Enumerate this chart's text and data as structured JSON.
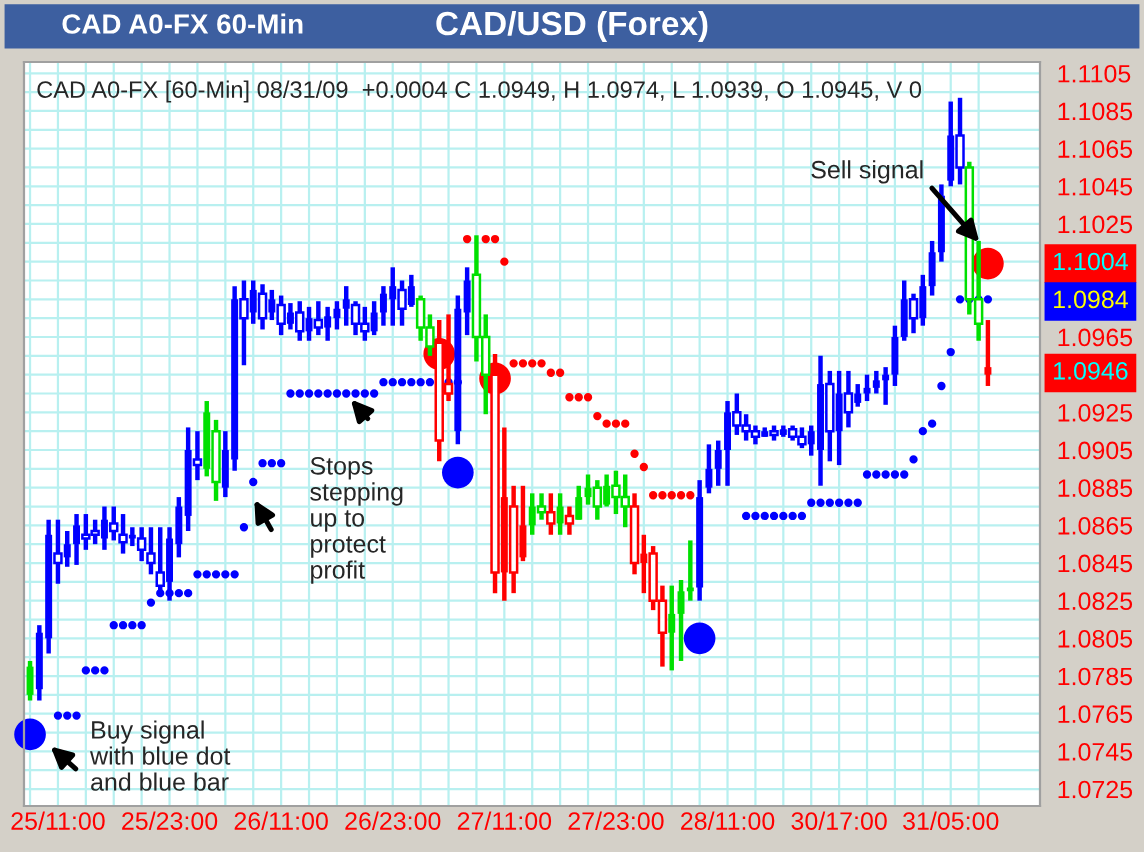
{
  "chart_data": {
    "type": "candlestick",
    "title": "CAD/USD (Forex)",
    "subtitle": "CAD A0-FX [60-Min] 08/31/09  +0.0004 C 1.0949, H 1.0974, L 1.0939, O 1.0945, V 0",
    "annotations": [
      "CAD A0-FX 60-Min",
      "Buy signal\nwith blue dot\nand blue bar",
      "Stops\nstepping\nup to\nprotect\nprofit",
      "Sell signal",
      "1.1004",
      "1.0984",
      "1.0946"
    ],
    "categories": [
      null,
      null,
      null,
      "25/11:00",
      null,
      null,
      null,
      null,
      null,
      null,
      null,
      null,
      null,
      null,
      null,
      "25/23:00",
      null,
      null,
      null,
      null,
      null,
      null,
      null,
      null,
      null,
      null,
      null,
      "26/11:00",
      null,
      null,
      null,
      null,
      null,
      null,
      null,
      null,
      null,
      null,
      null,
      "26/23:00",
      null,
      null,
      null,
      null,
      null,
      null,
      null,
      null,
      null,
      null,
      null,
      "27/11:00",
      null,
      null,
      null,
      null,
      null,
      null,
      null,
      null,
      null,
      null,
      null,
      "27/23:00",
      null,
      null,
      null,
      null,
      null,
      null,
      null,
      null,
      null,
      null,
      null,
      "28/11:00",
      null,
      null,
      null,
      null,
      null,
      null,
      null,
      null,
      null,
      null,
      null,
      "30/17:00",
      null,
      null,
      null,
      null,
      null,
      null,
      null,
      null,
      null,
      null,
      null,
      "31/05:00",
      null,
      null,
      null,
      null
    ],
    "ohlc": [
      [
        1.0775,
        1.0793,
        1.0772,
        1.079
      ],
      [
        1.0778,
        1.0812,
        1.0772,
        1.0808
      ],
      [
        1.0805,
        1.0868,
        1.0797,
        1.086
      ],
      [
        1.085,
        1.0868,
        1.0834,
        1.0845
      ],
      [
        1.0848,
        1.0862,
        1.0843,
        1.0855
      ],
      [
        1.0855,
        1.0871,
        1.0844,
        1.0865
      ],
      [
        1.086,
        1.0871,
        1.0852,
        1.0858
      ],
      [
        1.0862,
        1.0868,
        1.0855,
        1.086
      ],
      [
        1.0858,
        1.0875,
        1.0852,
        1.0868
      ],
      [
        1.0866,
        1.0875,
        1.0857,
        1.0862
      ],
      [
        1.086,
        1.0871,
        1.085,
        1.0856
      ],
      [
        1.0858,
        1.0864,
        1.0854,
        1.086
      ],
      [
        1.0858,
        1.0864,
        1.0846,
        1.0852
      ],
      [
        1.085,
        1.0864,
        1.0839,
        1.0845
      ],
      [
        1.084,
        1.0864,
        1.0828,
        1.0833
      ],
      [
        1.0835,
        1.0864,
        1.0825,
        1.0858
      ],
      [
        1.0855,
        1.088,
        1.0848,
        1.0875
      ],
      [
        1.087,
        1.0917,
        1.0862,
        1.0905
      ],
      [
        1.09,
        1.0915,
        1.0889,
        1.0897
      ],
      [
        1.0895,
        1.0931,
        1.0891,
        1.0925
      ],
      [
        1.0915,
        1.0921,
        1.0878,
        1.0888
      ],
      [
        1.0885,
        1.0915,
        1.088,
        1.0905
      ],
      [
        1.09,
        1.0992,
        1.0894,
        1.0985
      ],
      [
        1.0985,
        1.0995,
        1.095,
        1.0975
      ],
      [
        1.0978,
        1.0995,
        1.0972,
        1.099
      ],
      [
        1.0988,
        1.0993,
        1.0969,
        1.0975
      ],
      [
        1.0978,
        1.099,
        1.0974,
        1.0985
      ],
      [
        1.0982,
        1.0987,
        1.0966,
        1.0972
      ],
      [
        1.0972,
        1.0983,
        1.0969,
        1.0978
      ],
      [
        1.0978,
        1.0984,
        1.0963,
        1.0968
      ],
      [
        1.0968,
        1.0981,
        1.0963,
        1.0975
      ],
      [
        1.0974,
        1.0984,
        1.0966,
        1.097
      ],
      [
        1.097,
        1.0981,
        1.0963,
        1.0976
      ],
      [
        1.0975,
        1.0984,
        1.0969,
        1.098
      ],
      [
        1.098,
        1.0992,
        1.0971,
        1.0985
      ],
      [
        1.0982,
        1.0984,
        1.0966,
        1.0972
      ],
      [
        1.0972,
        1.0981,
        1.0963,
        1.0968
      ],
      [
        1.0968,
        1.0984,
        1.0966,
        1.0978
      ],
      [
        1.0978,
        1.0992,
        1.0971,
        1.0988
      ],
      [
        1.0985,
        1.1002,
        1.0971,
        1.0992
      ],
      [
        1.099,
        1.0995,
        1.0971,
        1.098
      ],
      [
        1.0982,
        1.0998,
        1.0981,
        1.0992
      ],
      [
        1.0985,
        1.0987,
        1.0963,
        1.097
      ],
      [
        1.097,
        1.0977,
        1.0955,
        1.096
      ],
      [
        1.0962,
        1.0974,
        1.0899,
        1.091
      ],
      [
        1.094,
        1.0977,
        1.0931,
        1.0935
      ],
      [
        1.0915,
        1.0987,
        1.0908,
        1.098
      ],
      [
        1.0978,
        1.1002,
        1.0966,
        1.0995
      ],
      [
        1.0998,
        1.1019,
        1.0952,
        1.0965
      ],
      [
        1.0965,
        1.0977,
        1.0924,
        1.0945
      ],
      [
        1.0945,
        1.0956,
        1.0829,
        1.084
      ],
      [
        1.084,
        1.0917,
        1.0825,
        1.088
      ],
      [
        1.0875,
        1.0886,
        1.0829,
        1.084
      ],
      [
        1.0848,
        1.0886,
        1.0846,
        1.0865
      ],
      [
        1.0865,
        1.0882,
        1.086,
        1.0875
      ],
      [
        1.0875,
        1.0882,
        1.0868,
        1.0872
      ],
      [
        1.0872,
        1.0882,
        1.086,
        1.0866
      ],
      [
        1.0866,
        1.0882,
        1.086,
        1.0875
      ],
      [
        1.087,
        1.0875,
        1.086,
        1.0866
      ],
      [
        1.0868,
        1.0886,
        1.0868,
        1.088
      ],
      [
        1.088,
        1.0892,
        1.0876,
        1.0885
      ],
      [
        1.0885,
        1.0889,
        1.0868,
        1.0875
      ],
      [
        1.0876,
        1.0892,
        1.0875,
        1.0886
      ],
      [
        1.0886,
        1.0894,
        1.0871,
        1.088
      ],
      [
        1.088,
        1.0892,
        1.0864,
        1.0875
      ],
      [
        1.0875,
        1.0882,
        1.0839,
        1.0845
      ],
      [
        1.0845,
        1.086,
        1.0829,
        1.085
      ],
      [
        1.085,
        1.0854,
        1.082,
        1.0825
      ],
      [
        1.0825,
        1.0833,
        1.079,
        1.0808
      ],
      [
        1.0808,
        1.0833,
        1.0788,
        1.0818
      ],
      [
        1.0818,
        1.0836,
        1.0793,
        1.083
      ],
      [
        1.083,
        1.0857,
        1.0825,
        1.0832
      ],
      [
        1.0832,
        1.0889,
        1.0825,
        1.088
      ],
      [
        1.0885,
        1.0908,
        1.0882,
        1.0895
      ],
      [
        1.0895,
        1.091,
        1.0886,
        1.0905
      ],
      [
        1.0905,
        1.0931,
        1.0886,
        1.0925
      ],
      [
        1.0925,
        1.0935,
        1.0913,
        1.0918
      ],
      [
        1.0918,
        1.0924,
        1.091,
        1.0915
      ],
      [
        1.0915,
        1.0918,
        1.0908,
        1.0912
      ],
      [
        1.0912,
        1.0917,
        1.0912,
        1.0915
      ],
      [
        1.0915,
        1.0918,
        1.091,
        1.0913
      ],
      [
        1.0913,
        1.0918,
        1.0912,
        1.0916
      ],
      [
        1.0916,
        1.0918,
        1.091,
        1.0912
      ],
      [
        1.0912,
        1.0917,
        1.0906,
        1.0908
      ],
      [
        1.0908,
        1.0918,
        1.0902,
        1.0915
      ],
      [
        1.0905,
        1.0955,
        1.0886,
        1.094
      ],
      [
        1.094,
        1.0947,
        1.0899,
        1.0915
      ],
      [
        1.0915,
        1.0947,
        1.0897,
        1.0935
      ],
      [
        1.0935,
        1.0947,
        1.0917,
        1.0925
      ],
      [
        1.093,
        1.094,
        1.0928,
        1.0935
      ],
      [
        1.0935,
        1.0945,
        1.0931,
        1.0938
      ],
      [
        1.0938,
        1.0947,
        1.0935,
        1.0942
      ],
      [
        1.0942,
        1.0949,
        1.0929,
        1.0945
      ],
      [
        1.0945,
        1.0971,
        1.0939,
        1.0965
      ],
      [
        1.0965,
        1.0995,
        1.0963,
        1.0985
      ],
      [
        1.0985,
        1.0988,
        1.0967,
        1.0975
      ],
      [
        1.0975,
        1.0998,
        1.0971,
        1.0992
      ],
      [
        1.0992,
        1.1016,
        1.0987,
        1.101
      ],
      [
        1.101,
        1.1046,
        1.1005,
        1.104
      ],
      [
        1.1048,
        1.109,
        1.1045,
        1.1072
      ],
      [
        1.1072,
        1.1092,
        1.1046,
        1.1055
      ],
      [
        1.1055,
        1.1058,
        1.0977,
        1.0985
      ],
      [
        1.0985,
        1.1016,
        1.0963,
        1.0972
      ],
      [
        1.0945,
        1.0974,
        1.0939,
        1.0949
      ]
    ],
    "colors": [
      "#00e000",
      "#0000ff",
      "#0000ff",
      "#0000ff",
      "#0000ff",
      "#0000ff",
      "#0000ff",
      "#0000ff",
      "#0000ff",
      "#0000ff",
      "#0000ff",
      "#0000ff",
      "#0000ff",
      "#0000ff",
      "#0000ff",
      "#0000ff",
      "#0000ff",
      "#0000ff",
      "#0000ff",
      "#00e000",
      "#00e000",
      "#0000ff",
      "#0000ff",
      "#0000ff",
      "#0000ff",
      "#0000ff",
      "#0000ff",
      "#0000ff",
      "#0000ff",
      "#0000ff",
      "#0000ff",
      "#0000ff",
      "#0000ff",
      "#0000ff",
      "#0000ff",
      "#0000ff",
      "#0000ff",
      "#0000ff",
      "#0000ff",
      "#0000ff",
      "#0000ff",
      "#0000ff",
      "#00e000",
      "#00e000",
      "#ff0000",
      "#ff0000",
      "#0000ff",
      "#0000ff",
      "#00e000",
      "#00e000",
      "#ff0000",
      "#ff0000",
      "#ff0000",
      "#ff0000",
      "#00e000",
      "#00e000",
      "#ff0000",
      "#00e000",
      "#ff0000",
      "#00e000",
      "#00e000",
      "#00e000",
      "#00e000",
      "#00e000",
      "#00e000",
      "#ff0000",
      "#ff0000",
      "#ff0000",
      "#ff0000",
      "#00e000",
      "#00e000",
      "#00e000",
      "#0000ff",
      "#0000ff",
      "#0000ff",
      "#0000ff",
      "#0000ff",
      "#0000ff",
      "#0000ff",
      "#0000ff",
      "#0000ff",
      "#0000ff",
      "#0000ff",
      "#0000ff",
      "#0000ff",
      "#0000ff",
      "#0000ff",
      "#0000ff",
      "#0000ff",
      "#0000ff",
      "#0000ff",
      "#0000ff",
      "#0000ff",
      "#0000ff",
      "#0000ff",
      "#0000ff",
      "#0000ff",
      "#0000ff",
      "#0000ff",
      "#0000ff",
      "#0000ff",
      "#00e000",
      "#00e000",
      "#ff0000"
    ],
    "series": [
      {
        "type": "scatter",
        "color": "#0000ff",
        "values": [
          null,
          null,
          null,
          1.0764,
          1.0764,
          1.0764,
          1.0788,
          1.0788,
          1.0788,
          1.0812,
          1.0812,
          1.0812,
          1.0812,
          1.0824,
          1.0829,
          1.0829,
          1.0829,
          1.0829,
          1.0839,
          1.0839,
          1.0839,
          1.0839,
          1.0839,
          1.0864,
          1.0888,
          1.0898,
          1.0898,
          1.0898,
          1.0935,
          1.0935,
          1.0935,
          1.0935,
          1.0935,
          1.0935,
          1.0935,
          1.0935,
          1.0935,
          1.0935,
          1.0941,
          1.0941,
          1.0941,
          1.0941,
          1.0941,
          1.0941,
          null,
          1.0941,
          1.0941,
          null,
          null,
          null,
          null,
          null,
          null,
          null,
          null,
          null,
          null,
          null,
          null,
          null,
          null,
          null,
          null,
          null,
          null,
          null,
          null,
          null,
          null,
          null,
          null,
          null,
          null,
          null,
          null,
          null,
          null,
          1.087,
          1.087,
          1.087,
          1.087,
          1.087,
          1.087,
          1.087,
          1.0877,
          1.0877,
          1.0877,
          1.0877,
          1.0877,
          1.0877,
          1.0892,
          1.0892,
          1.0892,
          1.0892,
          1.0892,
          1.09,
          1.0915,
          1.0919,
          1.0939,
          1.0957,
          1.0985,
          1.0985,
          1.0985,
          1.0985
        ]
      },
      {
        "type": "scatter",
        "color": "#ff0000",
        "values": [
          null,
          null,
          null,
          null,
          null,
          null,
          null,
          null,
          null,
          null,
          null,
          null,
          null,
          null,
          null,
          null,
          null,
          null,
          null,
          null,
          null,
          null,
          null,
          null,
          null,
          null,
          null,
          null,
          null,
          null,
          null,
          null,
          null,
          null,
          null,
          null,
          null,
          null,
          null,
          null,
          null,
          null,
          null,
          null,
          null,
          null,
          null,
          1.1017,
          null,
          1.1017,
          1.1017,
          1.1005,
          1.0951,
          1.0951,
          1.0951,
          1.0951,
          1.0946,
          1.0946,
          1.0933,
          1.0933,
          1.0933,
          1.0923,
          1.0919,
          1.0919,
          1.0919,
          1.0903,
          1.0896,
          1.0881,
          1.0881,
          1.0881,
          1.0881,
          1.0881,
          null,
          null,
          null,
          null,
          null,
          null,
          null,
          null,
          null,
          null,
          null,
          null,
          null,
          null,
          null,
          null,
          null,
          null,
          null,
          null,
          null,
          null,
          null,
          null,
          null,
          null,
          null,
          null,
          null,
          null,
          null,
          null
        ]
      },
      {
        "type": "bubble",
        "color": "#0000ff",
        "values": [
          1.0754,
          null,
          null,
          null,
          null,
          null,
          null,
          null,
          null,
          null,
          null,
          null,
          null,
          null,
          null,
          null,
          null,
          null,
          null,
          null,
          null,
          null,
          null,
          null,
          null,
          null,
          null,
          null,
          null,
          null,
          null,
          null,
          null,
          null,
          null,
          null,
          null,
          null,
          null,
          null,
          null,
          null,
          null,
          null,
          null,
          null,
          1.0893,
          null,
          null,
          null,
          null,
          null,
          null,
          null,
          null,
          null,
          null,
          null,
          null,
          null,
          null,
          null,
          null,
          null,
          null,
          null,
          null,
          null,
          null,
          null,
          null,
          null,
          1.0805,
          null,
          null,
          null,
          null,
          null,
          null,
          null,
          null,
          null,
          null,
          null,
          null,
          null,
          null,
          null,
          null,
          null,
          null,
          null,
          null,
          null,
          null,
          null,
          null,
          null,
          null,
          null,
          null,
          null,
          null,
          null
        ],
        "sizes": [
          1,
          null,
          null,
          null,
          null,
          null,
          null,
          null,
          null,
          null,
          null,
          null,
          null,
          null,
          null,
          null,
          null,
          null,
          null,
          null,
          null,
          null,
          null,
          null,
          null,
          null,
          null,
          null,
          null,
          null,
          null,
          null,
          null,
          null,
          null,
          null,
          null,
          null,
          null,
          null,
          null,
          null,
          null,
          null,
          null,
          null,
          1,
          null,
          null,
          null,
          null,
          null,
          null,
          null,
          null,
          null,
          null,
          null,
          null,
          null,
          null,
          null,
          null,
          null,
          null,
          null,
          null,
          null,
          null,
          null,
          null,
          null,
          1,
          null,
          null,
          null,
          null,
          null,
          null,
          null,
          null,
          null,
          null,
          null,
          null,
          null,
          null,
          null,
          null,
          null,
          null,
          null,
          null,
          null,
          null,
          null,
          null,
          null,
          null,
          null,
          null,
          null,
          null,
          null
        ]
      },
      {
        "type": "bubble",
        "color": "#ff0000",
        "values": [
          null,
          null,
          null,
          null,
          null,
          null,
          null,
          null,
          null,
          null,
          null,
          null,
          null,
          null,
          null,
          null,
          null,
          null,
          null,
          null,
          null,
          null,
          null,
          null,
          null,
          null,
          null,
          null,
          null,
          null,
          null,
          null,
          null,
          null,
          null,
          null,
          null,
          null,
          null,
          null,
          null,
          null,
          null,
          null,
          1.0956,
          null,
          null,
          null,
          null,
          null,
          1.0943,
          null,
          null,
          null,
          null,
          null,
          null,
          null,
          null,
          null,
          null,
          null,
          null,
          null,
          null,
          null,
          null,
          null,
          null,
          null,
          null,
          null,
          null,
          null,
          null,
          null,
          null,
          null,
          null,
          null,
          null,
          null,
          null,
          null,
          null,
          null,
          null,
          null,
          null,
          null,
          null,
          null,
          null,
          null,
          null,
          null,
          null,
          null,
          null,
          null,
          null,
          null,
          null,
          1.1004
        ],
        "sizes": [
          null,
          null,
          null,
          null,
          null,
          null,
          null,
          null,
          null,
          null,
          null,
          null,
          null,
          null,
          null,
          null,
          null,
          null,
          null,
          null,
          null,
          null,
          null,
          null,
          null,
          null,
          null,
          null,
          null,
          null,
          null,
          null,
          null,
          null,
          null,
          null,
          null,
          null,
          null,
          null,
          null,
          null,
          null,
          null,
          1,
          null,
          null,
          null,
          null,
          null,
          1,
          null,
          null,
          null,
          null,
          null,
          null,
          null,
          null,
          null,
          null,
          null,
          null,
          null,
          null,
          null,
          null,
          null,
          null,
          null,
          null,
          null,
          null,
          null,
          null,
          null,
          null,
          null,
          null,
          null,
          null,
          null,
          null,
          null,
          null,
          null,
          null,
          null,
          null,
          null,
          null,
          null,
          null,
          null,
          null,
          null,
          null,
          null,
          null,
          null,
          null,
          null,
          null,
          1
        ]
      }
    ],
    "marker": "circle",
    "ylim": [
      1.0716,
      1.1111
    ],
    "yticks": [
      1.0725,
      {
        "value": 1.0735,
        "label": null
      },
      1.0745,
      {
        "value": 1.0755,
        "label": null
      },
      1.0765,
      {
        "value": 1.0775,
        "label": null
      },
      1.0785,
      {
        "value": 1.0795,
        "label": null
      },
      1.0805,
      {
        "value": 1.0815,
        "label": null
      },
      1.0825,
      {
        "value": 1.0835,
        "label": null
      },
      1.0845,
      {
        "value": 1.0855,
        "label": null
      },
      1.0865,
      {
        "value": 1.0875,
        "label": null
      },
      1.0885,
      {
        "value": 1.0895,
        "label": null
      },
      1.0905,
      {
        "value": 1.0915,
        "label": null
      },
      1.0925,
      {
        "value": 1.0935,
        "label": null
      },
      {
        "value": 1.0945,
        "label": null
      },
      {
        "value": 1.0955,
        "label": null
      },
      1.0965,
      {
        "value": 1.0975,
        "label": null
      },
      {
        "value": 1.0985,
        "label": null
      },
      {
        "value": 1.0995,
        "label": null
      },
      {
        "value": 1.1005,
        "label": null
      },
      {
        "value": 1.1015,
        "label": null
      },
      1.1025,
      {
        "value": 1.1035,
        "label": null
      },
      1.1045,
      {
        "value": 1.1055,
        "label": null
      },
      1.1065,
      {
        "value": 1.1075,
        "label": null
      },
      1.1085,
      {
        "value": 1.1095,
        "label": null
      },
      1.1105
    ],
    "grid": true
  }
}
